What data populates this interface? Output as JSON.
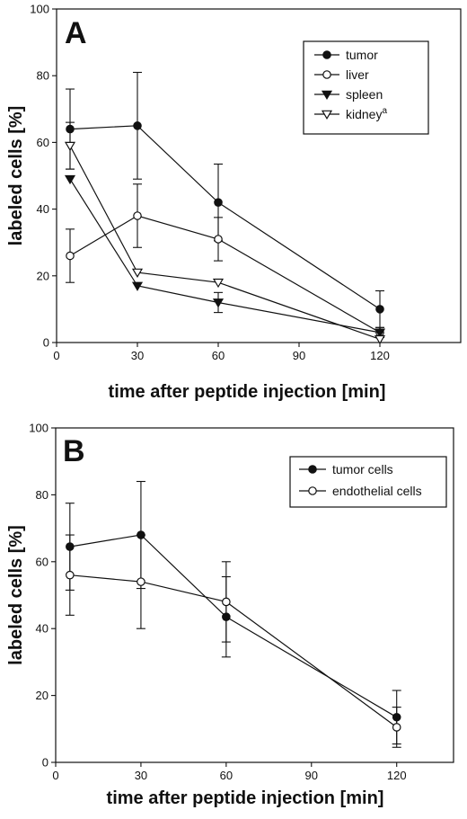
{
  "chart_data": [
    {
      "type": "line",
      "panel_label": "A",
      "xlabel": "time after peptide injection [min]",
      "ylabel": "labeled cells [%]",
      "xlim": [
        0,
        150
      ],
      "ylim": [
        0,
        100
      ],
      "xticks": [
        0,
        30,
        60,
        90,
        120
      ],
      "yticks": [
        0,
        20,
        40,
        60,
        80,
        100
      ],
      "grid": false,
      "legend_position": "top-right",
      "x": [
        5,
        30,
        60,
        120
      ],
      "series": [
        {
          "name": "tumor",
          "marker": "filled-circle",
          "values": [
            64,
            65,
            42,
            10
          ],
          "error": [
            12,
            16,
            11.5,
            5.5
          ]
        },
        {
          "name": "liver",
          "marker": "open-circle",
          "values": [
            26,
            38,
            31,
            3
          ],
          "error": [
            8,
            9.5,
            6.5,
            1.5
          ]
        },
        {
          "name": "spleen",
          "marker": "filled-triangle-down",
          "values": [
            49,
            17,
            12,
            3
          ],
          "error": [
            0,
            0,
            3,
            0
          ]
        },
        {
          "name": "kidney",
          "name_superscript": "a",
          "marker": "open-triangle-down",
          "values": [
            59,
            21,
            18,
            1
          ],
          "error": [
            7,
            0,
            0,
            0
          ]
        }
      ]
    },
    {
      "type": "line",
      "panel_label": "B",
      "xlabel": "time after peptide injection [min]",
      "ylabel": "labeled cells [%]",
      "xlim": [
        0,
        140
      ],
      "ylim": [
        0,
        100
      ],
      "xticks": [
        0,
        30,
        60,
        90,
        120
      ],
      "yticks": [
        0,
        20,
        40,
        60,
        80,
        100
      ],
      "grid": false,
      "legend_position": "top-right",
      "x": [
        5,
        30,
        60,
        120
      ],
      "series": [
        {
          "name": "tumor cells",
          "marker": "filled-circle",
          "values": [
            64.5,
            68,
            43.5,
            13.5
          ],
          "error": [
            13,
            16,
            12,
            8
          ]
        },
        {
          "name": "endothelial cells",
          "marker": "open-circle",
          "values": [
            56,
            54,
            48,
            10.5
          ],
          "error": [
            12,
            14,
            12,
            6
          ]
        }
      ]
    }
  ]
}
